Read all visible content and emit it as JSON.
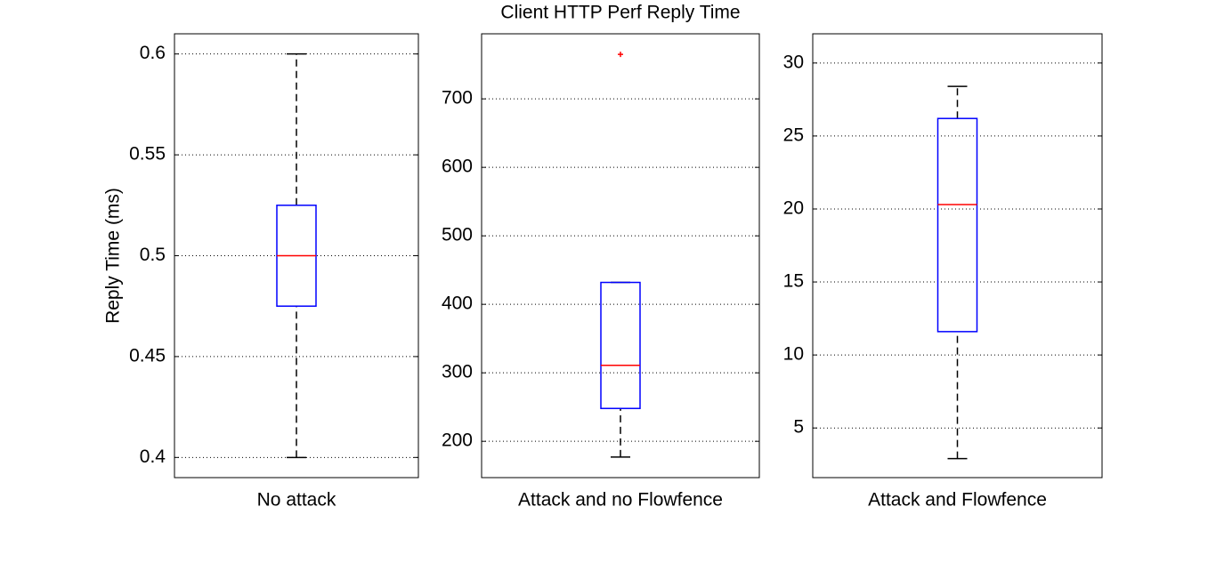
{
  "chart_data": [
    {
      "type": "box",
      "ylabel": "Reply Time (ms)",
      "categories": [
        "No attack"
      ],
      "boxes": [
        {
          "whislo": 0.4,
          "q1": 0.475,
          "med": 0.5,
          "q3": 0.525,
          "whishi": 0.6,
          "fliers": []
        }
      ],
      "ylim": [
        0.39,
        0.61
      ],
      "yticks": [
        0.4,
        0.45,
        0.5,
        0.55,
        0.6
      ],
      "grid": true,
      "box_color": "#0000ff",
      "median_color": "#ff0000",
      "whisker_color": "#000000",
      "flier_color": "#ff0000"
    },
    {
      "type": "box",
      "title": "Client HTTP Perf Reply Time",
      "categories": [
        "Attack and no Flowfence"
      ],
      "boxes": [
        {
          "whislo": 177,
          "q1": 248,
          "med": 311,
          "q3": 432,
          "whishi": 432,
          "fliers": [
            765
          ]
        }
      ],
      "ylim": [
        147,
        795
      ],
      "yticks": [
        200,
        300,
        400,
        500,
        600,
        700
      ],
      "grid": true,
      "box_color": "#0000ff",
      "median_color": "#ff0000",
      "whisker_color": "#000000",
      "flier_color": "#ff0000"
    },
    {
      "type": "box",
      "categories": [
        "Attack and Flowfence"
      ],
      "boxes": [
        {
          "whislo": 2.9,
          "q1": 11.6,
          "med": 20.3,
          "q3": 26.2,
          "whishi": 28.4,
          "fliers": []
        }
      ],
      "ylim": [
        1.6,
        32
      ],
      "yticks": [
        5,
        10,
        15,
        20,
        25,
        30
      ],
      "grid": true,
      "box_color": "#0000ff",
      "median_color": "#ff0000",
      "whisker_color": "#000000",
      "flier_color": "#ff0000"
    }
  ]
}
